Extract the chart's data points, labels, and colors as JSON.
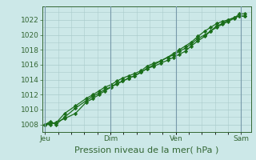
{
  "background_color": "#cce8e8",
  "plot_bg_color": "#cce8e8",
  "grid_color": "#aacccc",
  "line_color": "#1a6e1a",
  "marker_color": "#1a6e1a",
  "xlabel": "Pression niveau de la mer( hPa )",
  "ylim": [
    1007.0,
    1023.8
  ],
  "yticks": [
    1008,
    1010,
    1012,
    1014,
    1016,
    1018,
    1020,
    1022
  ],
  "day_labels": [
    "Jeu",
    "Dim",
    "Ven",
    "Sam"
  ],
  "day_positions": [
    0.0,
    0.333,
    0.667,
    1.0
  ],
  "vline_color": "#7799aa",
  "line1_x": [
    0.0,
    0.025,
    0.055,
    0.1,
    0.155,
    0.21,
    0.245,
    0.275,
    0.305,
    0.335,
    0.365,
    0.395,
    0.425,
    0.455,
    0.49,
    0.52,
    0.555,
    0.59,
    0.625,
    0.655,
    0.685,
    0.715,
    0.745,
    0.78,
    0.815,
    0.845,
    0.875,
    0.905,
    0.935,
    0.965,
    0.99,
    1.02
  ],
  "line1_y": [
    1008.0,
    1008.4,
    1008.0,
    1009.0,
    1010.2,
    1011.2,
    1011.8,
    1012.2,
    1012.7,
    1013.0,
    1013.4,
    1013.8,
    1014.2,
    1014.5,
    1015.0,
    1015.5,
    1015.8,
    1016.2,
    1016.6,
    1017.0,
    1017.4,
    1017.8,
    1018.5,
    1019.2,
    1019.8,
    1020.5,
    1021.0,
    1021.4,
    1021.8,
    1022.2,
    1022.8,
    1022.8
  ],
  "line2_x": [
    0.0,
    0.025,
    0.055,
    0.1,
    0.155,
    0.21,
    0.245,
    0.275,
    0.305,
    0.335,
    0.365,
    0.395,
    0.425,
    0.455,
    0.49,
    0.52,
    0.555,
    0.59,
    0.625,
    0.655,
    0.685,
    0.715,
    0.745,
    0.78,
    0.815,
    0.845,
    0.875,
    0.905,
    0.935,
    0.965,
    0.99,
    1.02
  ],
  "line2_y": [
    1008.0,
    1008.2,
    1008.2,
    1009.5,
    1010.5,
    1011.5,
    1012.0,
    1012.5,
    1013.0,
    1013.3,
    1013.8,
    1014.2,
    1014.5,
    1014.8,
    1015.2,
    1015.8,
    1016.2,
    1016.5,
    1017.0,
    1017.3,
    1017.8,
    1018.2,
    1018.8,
    1019.5,
    1020.0,
    1020.5,
    1021.2,
    1021.5,
    1022.0,
    1022.3,
    1022.5,
    1022.5
  ],
  "line3_x": [
    0.0,
    0.025,
    0.055,
    0.1,
    0.155,
    0.21,
    0.245,
    0.275,
    0.305,
    0.335,
    0.365,
    0.395,
    0.425,
    0.455,
    0.49,
    0.52,
    0.555,
    0.59,
    0.625,
    0.655,
    0.685,
    0.715,
    0.745,
    0.78,
    0.815,
    0.845,
    0.875,
    0.905,
    0.935,
    0.965,
    0.99,
    1.02
  ],
  "line3_y": [
    1008.0,
    1008.0,
    1008.3,
    1008.8,
    1009.5,
    1011.0,
    1011.5,
    1012.0,
    1012.5,
    1013.0,
    1013.5,
    1013.8,
    1014.2,
    1014.5,
    1015.0,
    1015.5,
    1016.0,
    1016.5,
    1017.0,
    1017.5,
    1018.0,
    1018.5,
    1019.0,
    1019.8,
    1020.5,
    1021.0,
    1021.5,
    1021.8,
    1022.0,
    1022.3,
    1022.5,
    1022.5
  ],
  "xlim": [
    -0.015,
    1.05
  ],
  "tick_fontsize": 6.5,
  "label_fontsize": 8.0
}
